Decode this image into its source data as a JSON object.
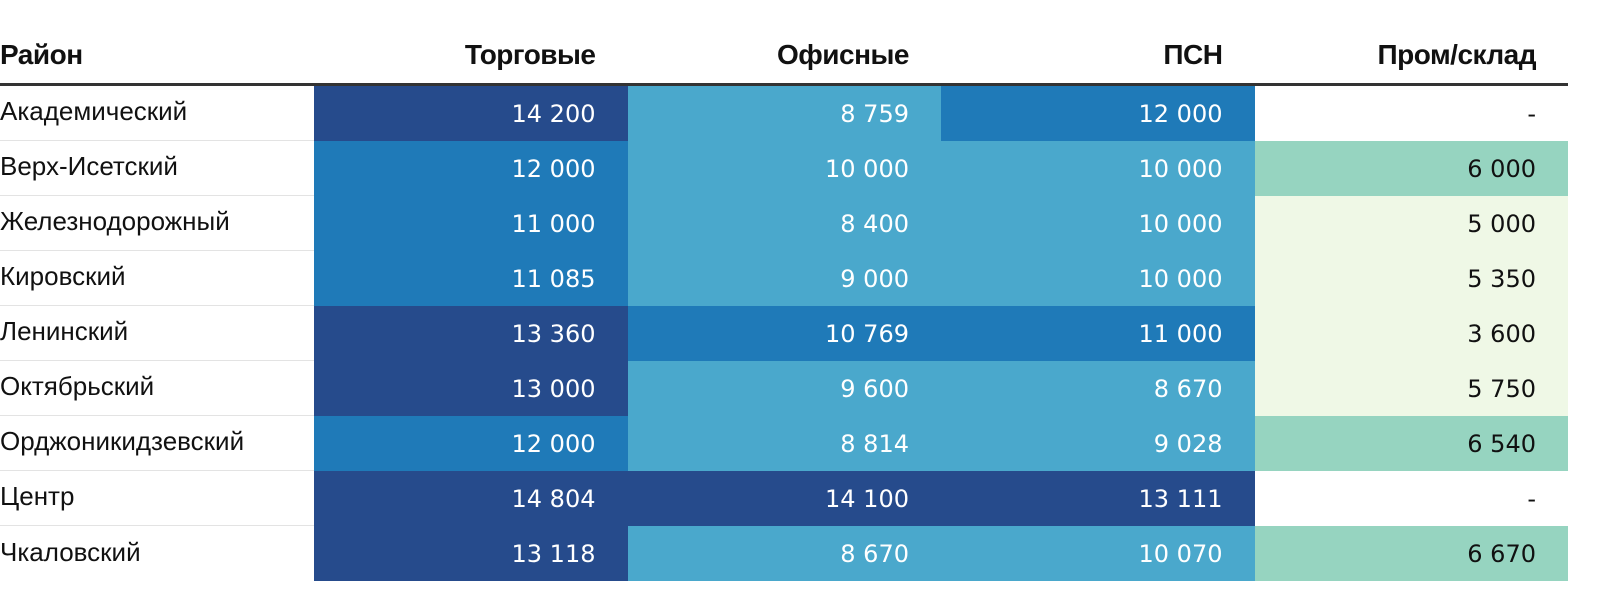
{
  "chart_data": {
    "type": "table",
    "columns": [
      "Район",
      "Торговые",
      "Офисные",
      "ПСН",
      "Пром/склад"
    ],
    "rows": [
      {
        "district": "Академический",
        "values": [
          "14 200",
          "8 759",
          "12 000",
          "-"
        ]
      },
      {
        "district": "Верх-Исетский",
        "values": [
          "12 000",
          "10 000",
          "10 000",
          "6 000"
        ]
      },
      {
        "district": "Железнодорожный",
        "values": [
          "11 000",
          "8 400",
          "10 000",
          "5 000"
        ]
      },
      {
        "district": "Кировский",
        "values": [
          "11 085",
          "9 000",
          "10 000",
          "5 350"
        ]
      },
      {
        "district": "Ленинский",
        "values": [
          "13 360",
          "10 769",
          "11 000",
          "3 600"
        ]
      },
      {
        "district": "Октябрьский",
        "values": [
          "13 000",
          "9 600",
          "8 670",
          "5 750"
        ]
      },
      {
        "district": "Орджоникидзевский",
        "values": [
          "12 000",
          "8 814",
          "9 028",
          "6 540"
        ]
      },
      {
        "district": "Центр",
        "values": [
          "14 804",
          "14 100",
          "13 111",
          "-"
        ]
      },
      {
        "district": "Чкаловский",
        "values": [
          "13 118",
          "8 670",
          "10 070",
          "6 670"
        ]
      }
    ],
    "color_classes": [
      [
        "dark",
        "light",
        "mid",
        "none"
      ],
      [
        "mid",
        "light",
        "light",
        "green"
      ],
      [
        "mid",
        "light",
        "light",
        "pale"
      ],
      [
        "mid",
        "light",
        "light",
        "pale"
      ],
      [
        "dark",
        "mid",
        "mid",
        "pale"
      ],
      [
        "dark",
        "light",
        "light",
        "pale"
      ],
      [
        "mid",
        "light",
        "light",
        "green"
      ],
      [
        "dark",
        "dark",
        "dark",
        "none"
      ],
      [
        "dark",
        "light",
        "light",
        "green"
      ]
    ],
    "colors": {
      "dark": "#264b8c",
      "mid": "#1f7ab8",
      "light": "#4aa8cc",
      "green": "#96d4c0",
      "pale": "#eff8e6",
      "none": "#ffffff"
    },
    "text_colors": {
      "dark": "#ffffff",
      "mid": "#ffffff",
      "light": "#ffffff",
      "green": "#111111",
      "pale": "#111111",
      "none": "#111111"
    }
  }
}
